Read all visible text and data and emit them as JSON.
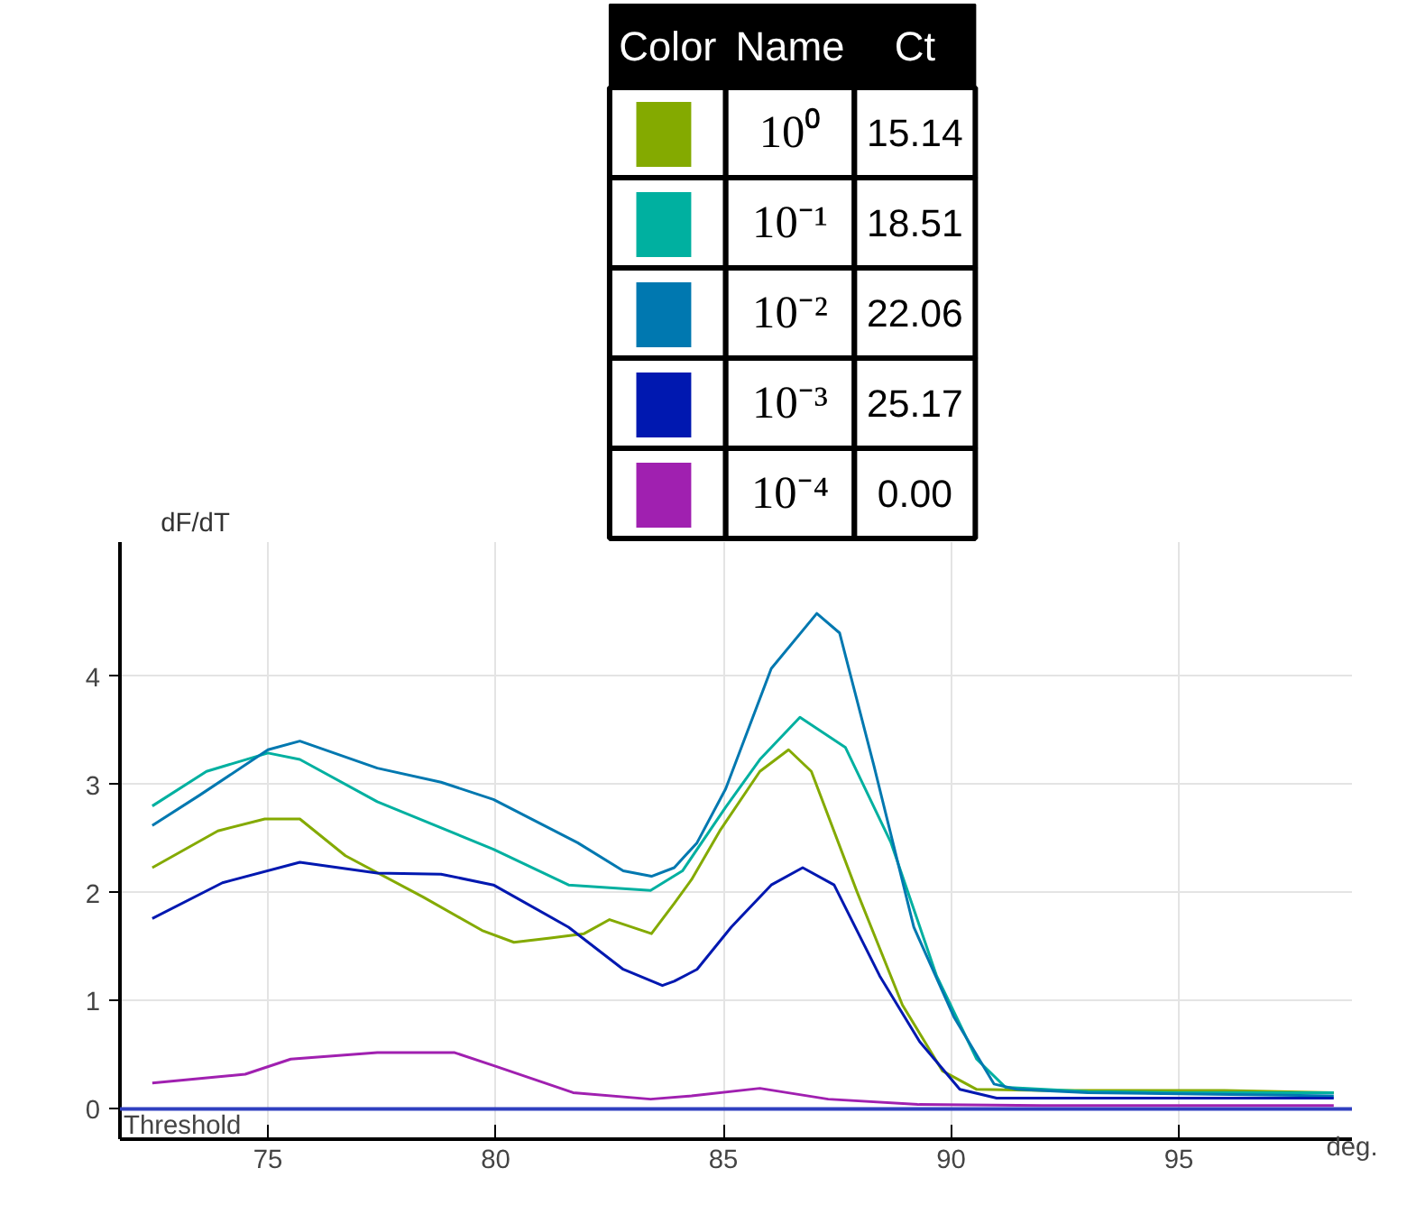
{
  "chart_data": {
    "type": "line",
    "xlabel": "deg.",
    "ylabel": "dF/dT",
    "legend": "top",
    "grid": true,
    "line_style": "solid",
    "xlim": [
      71.75,
      98.8
    ],
    "ylim": [
      -0.28,
      5.24
    ],
    "xticks": [
      75,
      80,
      85,
      90,
      95
    ],
    "yticks": [
      0,
      1,
      2,
      3,
      4
    ],
    "legend_title": "Color",
    "annotations": [
      "Name",
      "Ct",
      "15.14",
      "18.51",
      "22.06",
      "25.17",
      "0.00"
    ],
    "ref_lines": [
      {
        "axis": "y",
        "value": 0,
        "label": "Threshold",
        "color": "#3040c0"
      }
    ],
    "series": [
      {
        "name": "10⁰",
        "color": "#84aa00",
        "x": [
          72.46,
          73.9,
          74.93,
          75.7,
          76.7,
          78.4,
          79.7,
          80.4,
          81.2,
          81.94,
          82.5,
          83.42,
          83.92,
          84.3,
          84.92,
          85.8,
          86.43,
          86.93,
          87.93,
          88.93,
          89.81,
          90.56,
          92,
          94,
          96,
          98.4
        ],
        "values": [
          2.23,
          2.57,
          2.68,
          2.68,
          2.34,
          1.96,
          1.65,
          1.54,
          1.58,
          1.62,
          1.75,
          1.62,
          1.9,
          2.12,
          2.57,
          3.12,
          3.32,
          3.12,
          2.01,
          0.96,
          0.35,
          0.18,
          0.17,
          0.17,
          0.17,
          0.15
        ]
      },
      {
        "name": "10⁻¹",
        "color": "#00b0a0",
        "x": [
          72.46,
          73.65,
          75.0,
          75.7,
          77.4,
          79.95,
          81.6,
          83.4,
          84.1,
          85.05,
          85.8,
          86.68,
          87.68,
          88.68,
          89.68,
          90.56,
          91.19,
          93,
          95,
          98.4
        ],
        "values": [
          2.8,
          3.12,
          3.29,
          3.23,
          2.84,
          2.4,
          2.07,
          2.02,
          2.2,
          2.79,
          3.23,
          3.62,
          3.34,
          2.46,
          1.23,
          0.46,
          0.2,
          0.16,
          0.15,
          0.15
        ]
      },
      {
        "name": "10⁻²",
        "color": "#0078b0",
        "x": [
          72.46,
          73.5,
          75.0,
          75.7,
          77.4,
          78.8,
          79.95,
          81.8,
          82.8,
          83.42,
          83.92,
          84.42,
          85.05,
          86.05,
          87.05,
          87.55,
          88.3,
          89.18,
          90.06,
          90.94,
          91.44,
          93,
          95,
          98.4
        ],
        "values": [
          2.62,
          2.9,
          3.32,
          3.4,
          3.15,
          3.02,
          2.86,
          2.46,
          2.2,
          2.15,
          2.23,
          2.46,
          2.96,
          4.07,
          4.58,
          4.4,
          3.18,
          1.68,
          0.85,
          0.23,
          0.18,
          0.15,
          0.14,
          0.12
        ]
      },
      {
        "name": "10⁻³",
        "color": "#0018b0",
        "x": [
          72.46,
          74.0,
          75.7,
          77.4,
          78.8,
          79.95,
          81.6,
          82.8,
          83.66,
          83.92,
          84.42,
          85.17,
          86.05,
          86.74,
          87.43,
          88.43,
          89.31,
          90.19,
          91,
          93,
          95,
          98.4
        ],
        "values": [
          1.76,
          2.09,
          2.28,
          2.18,
          2.17,
          2.07,
          1.68,
          1.29,
          1.14,
          1.18,
          1.29,
          1.68,
          2.07,
          2.23,
          2.07,
          1.23,
          0.62,
          0.18,
          0.1,
          0.1,
          0.1,
          0.1
        ]
      },
      {
        "name": "10⁻⁴",
        "color": "#a020b0",
        "x": [
          72.46,
          74.5,
          75.5,
          77.4,
          79.1,
          79.95,
          81.7,
          83.4,
          84.3,
          85.8,
          87.3,
          89.3,
          92,
          95,
          98.4
        ],
        "values": [
          0.24,
          0.32,
          0.46,
          0.52,
          0.52,
          0.4,
          0.15,
          0.09,
          0.12,
          0.19,
          0.09,
          0.04,
          0.03,
          0.03,
          0.03
        ]
      }
    ]
  }
}
